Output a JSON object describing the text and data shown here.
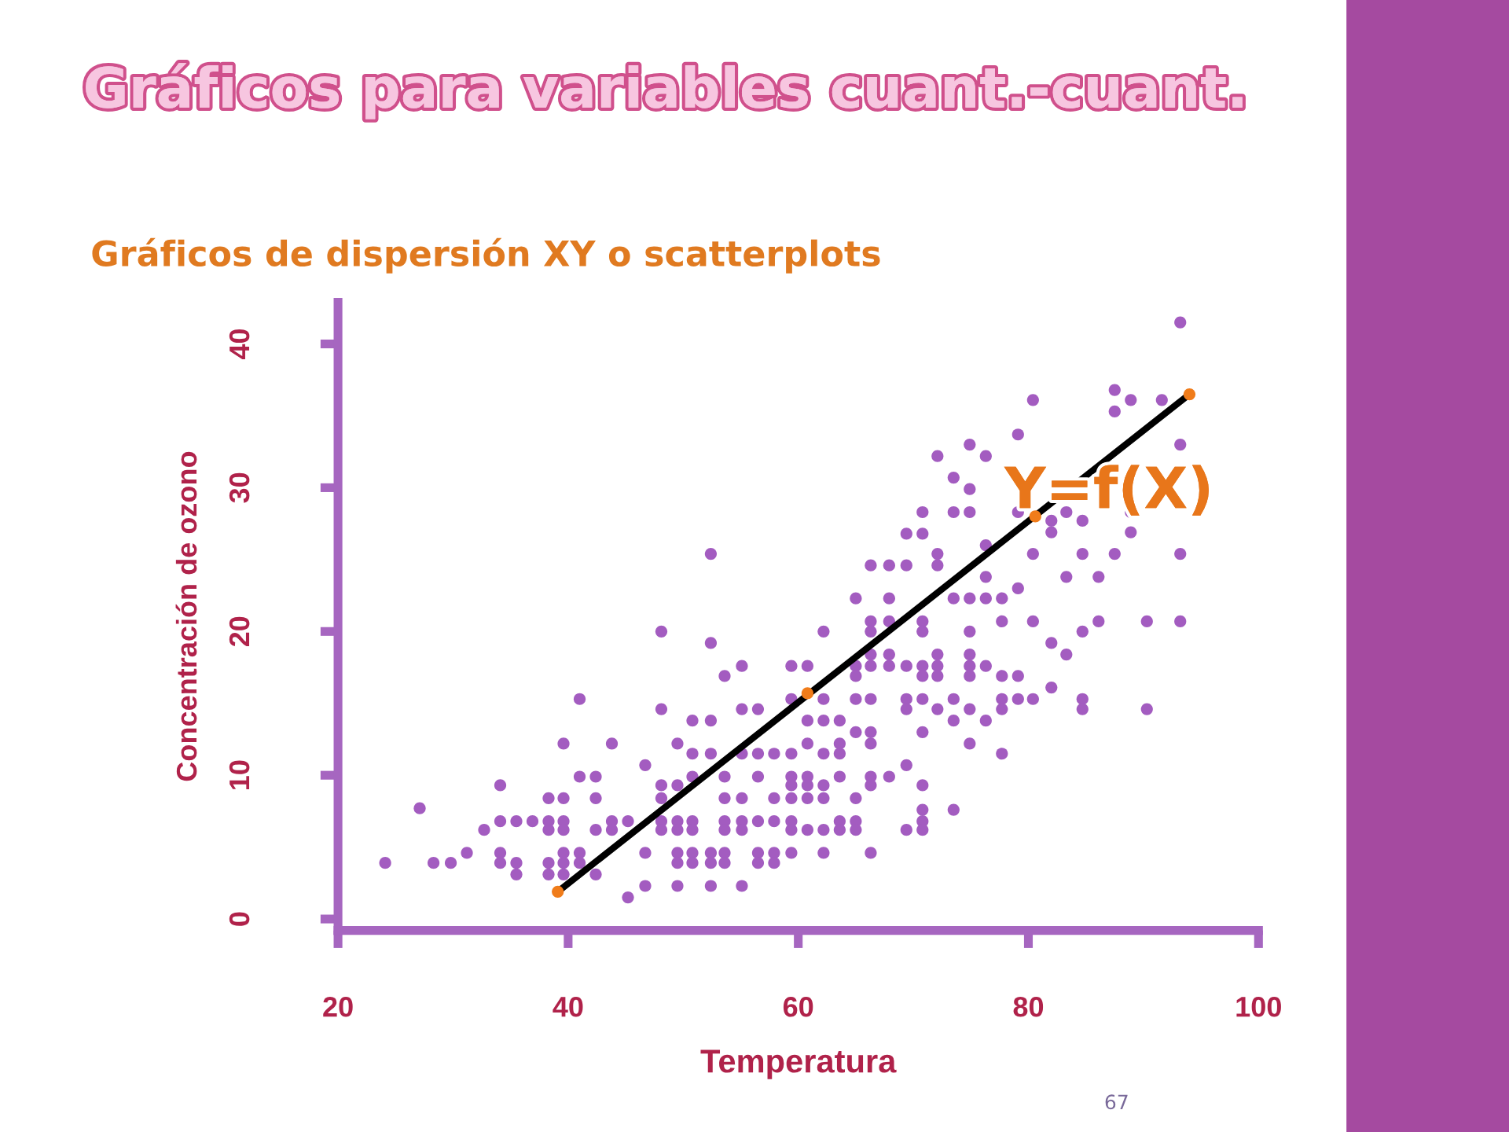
{
  "chart_data": {
    "type": "scatter",
    "title": "Gráficos para variables cuant.-cuant.",
    "subtitle": "Gráficos de dispersión XY o scatterplots",
    "xlabel": "Temperatura",
    "ylabel": "Concentración de ozono",
    "annotations": [
      "Y=f(X)",
      "67"
    ],
    "xlim": [
      20,
      100
    ],
    "ylim": [
      -0.8,
      42.9
    ],
    "xticks": [
      20,
      40,
      60,
      80,
      100
    ],
    "yticks": [
      0,
      10,
      20,
      30,
      40
    ],
    "grid": false,
    "legend": false,
    "series": [
      {
        "color": "#a35cc0",
        "marker": "circle",
        "x": [
          24.1,
          27.1,
          28.3,
          29.8,
          31.2,
          32.7,
          34.1,
          34.1,
          35.5,
          36.9,
          34.1,
          34.1,
          35.5,
          35.5,
          38.3,
          39.6,
          38.3,
          39.6,
          38.3,
          39.6,
          38.3,
          39.6,
          38.3,
          39.6,
          41.0,
          39.6,
          41.0,
          42.4,
          39.6,
          41.0,
          41.0,
          42.4,
          42.4,
          42.4,
          43.8,
          45.2,
          43.8,
          43.8,
          45.2,
          46.7,
          46.7,
          46.7,
          48.1,
          48.1,
          49.5,
          48.1,
          49.5,
          48.1,
          48.1,
          49.5,
          50.8,
          48.1,
          49.5,
          50.8,
          49.5,
          50.8,
          52.4,
          53.6,
          49.5,
          50.8,
          52.4,
          53.6,
          49.5,
          52.4,
          55.1,
          52.4,
          53.6,
          50.8,
          52.4,
          50.8,
          52.4,
          50.8,
          53.6,
          53.6,
          55.1,
          53.6,
          55.1,
          56.5,
          57.9,
          59.4,
          53.6,
          55.1,
          59.4,
          56.5,
          57.9,
          59.4,
          56.5,
          57.9,
          55.1,
          59.4,
          55.1,
          56.5,
          55.1,
          56.5,
          57.9,
          59.4,
          56.5,
          59.4,
          59.4,
          57.9,
          59.4,
          73.5,
          74.9,
          70.8,
          73.5,
          74.9,
          79.1,
          69.4,
          70.8,
          52.4,
          76.3,
          66.3,
          67.9,
          69.4,
          72.1,
          72.1,
          76.3,
          79.1,
          65.0,
          67.9,
          73.5,
          74.9,
          76.3,
          77.7,
          66.3,
          67.9,
          70.8,
          77.7,
          80.4,
          62.2,
          66.3,
          70.8,
          74.9,
          66.3,
          67.9,
          72.1,
          74.9,
          60.8,
          65.0,
          66.3,
          67.9,
          69.4,
          70.8,
          72.1,
          74.9,
          76.3,
          65.0,
          70.8,
          72.1,
          74.9,
          77.7,
          79.1,
          59.4,
          62.2,
          65.0,
          66.3,
          69.4,
          70.8,
          73.5,
          77.7,
          79.1,
          80.4,
          69.4,
          72.1,
          74.9,
          77.7,
          60.8,
          62.2,
          63.6,
          73.5,
          76.3,
          65.0,
          66.3,
          70.8,
          60.8,
          63.6,
          66.3,
          74.9,
          62.2,
          63.6,
          77.7,
          69.4,
          60.8,
          63.6,
          66.3,
          67.9,
          60.8,
          62.2,
          66.3,
          70.8,
          60.8,
          62.2,
          65.0,
          70.8,
          73.5,
          63.6,
          65.0,
          70.8,
          60.8,
          62.2,
          63.6,
          65.0,
          69.4,
          70.8,
          62.2,
          66.3,
          93.2,
          87.5,
          88.9,
          91.6,
          87.5,
          80.4,
          79.1,
          74.9,
          72.1,
          76.3,
          93.2,
          83.3,
          88.9,
          82.0,
          84.7,
          82.0,
          88.9,
          80.4,
          84.7,
          87.5,
          93.2,
          83.3,
          86.1,
          86.1,
          90.3,
          93.2,
          84.7,
          82.0,
          83.3,
          82.0,
          84.7,
          84.7,
          90.3
        ],
        "values": [
          3.9,
          7.7,
          3.9,
          3.9,
          4.6,
          6.2,
          9.3,
          6.8,
          6.8,
          6.8,
          4.6,
          3.9,
          3.9,
          3.1,
          8.4,
          8.4,
          6.8,
          6.8,
          6.2,
          6.2,
          3.9,
          3.9,
          3.1,
          3.1,
          4.6,
          4.6,
          3.9,
          3.1,
          12.2,
          15.3,
          9.9,
          9.9,
          8.4,
          6.2,
          6.8,
          6.8,
          6.2,
          12.2,
          1.5,
          10.7,
          4.6,
          2.3,
          20.0,
          14.6,
          12.2,
          9.3,
          9.3,
          8.4,
          6.8,
          6.8,
          6.8,
          6.2,
          6.2,
          6.2,
          4.6,
          4.6,
          4.6,
          4.6,
          3.9,
          3.9,
          3.9,
          3.9,
          2.3,
          2.3,
          2.3,
          19.2,
          16.9,
          13.8,
          13.8,
          11.5,
          11.5,
          9.9,
          9.9,
          8.4,
          8.4,
          6.8,
          6.8,
          6.8,
          6.8,
          6.8,
          6.2,
          6.2,
          6.2,
          4.6,
          4.6,
          4.6,
          3.9,
          3.9,
          17.6,
          17.6,
          14.6,
          14.6,
          11.5,
          11.5,
          11.5,
          11.5,
          9.9,
          9.9,
          9.3,
          8.4,
          8.4,
          30.7,
          29.9,
          28.3,
          28.3,
          28.3,
          28.3,
          26.8,
          26.8,
          25.4,
          26.0,
          24.6,
          24.6,
          24.6,
          24.6,
          25.4,
          23.8,
          23.0,
          22.3,
          22.3,
          22.3,
          22.3,
          22.3,
          22.3,
          20.7,
          20.7,
          20.7,
          20.7,
          20.7,
          20.0,
          20.0,
          20.0,
          20.0,
          18.4,
          18.4,
          18.4,
          18.4,
          17.6,
          17.6,
          17.6,
          17.6,
          17.6,
          17.6,
          17.6,
          17.6,
          17.6,
          16.9,
          16.9,
          16.9,
          16.9,
          16.9,
          16.9,
          15.3,
          15.3,
          15.3,
          15.3,
          15.3,
          15.3,
          15.3,
          15.3,
          15.3,
          15.3,
          14.6,
          14.6,
          14.6,
          14.6,
          13.8,
          13.8,
          13.8,
          13.8,
          13.8,
          13.0,
          13.0,
          13.0,
          12.2,
          12.2,
          12.2,
          12.2,
          11.5,
          11.5,
          11.5,
          10.7,
          9.9,
          9.9,
          9.9,
          9.9,
          9.3,
          9.3,
          9.3,
          9.3,
          8.4,
          8.4,
          8.4,
          7.6,
          7.6,
          6.8,
          6.8,
          6.8,
          6.2,
          6.2,
          6.2,
          6.2,
          6.2,
          6.2,
          4.6,
          4.6,
          41.5,
          36.8,
          36.1,
          36.1,
          35.3,
          36.1,
          33.7,
          33.0,
          32.2,
          32.2,
          33.0,
          28.3,
          28.3,
          27.7,
          27.7,
          26.9,
          26.9,
          25.4,
          25.4,
          25.4,
          25.4,
          23.8,
          23.8,
          20.7,
          20.7,
          20.7,
          20.0,
          19.2,
          18.4,
          16.1,
          15.3,
          14.6,
          14.6
        ]
      },
      {
        "type": "line",
        "color": "#000000",
        "marker": "none",
        "line_style": "solid",
        "x": [
          39.1,
          94.0
        ],
        "values": [
          1.9,
          36.5
        ]
      },
      {
        "type": "scatter",
        "color": "#f07c1a",
        "marker": "circle",
        "x": [
          39.1,
          60.8,
          80.6,
          94.0
        ],
        "values": [
          1.9,
          15.7,
          28.0,
          36.5
        ]
      }
    ]
  }
}
